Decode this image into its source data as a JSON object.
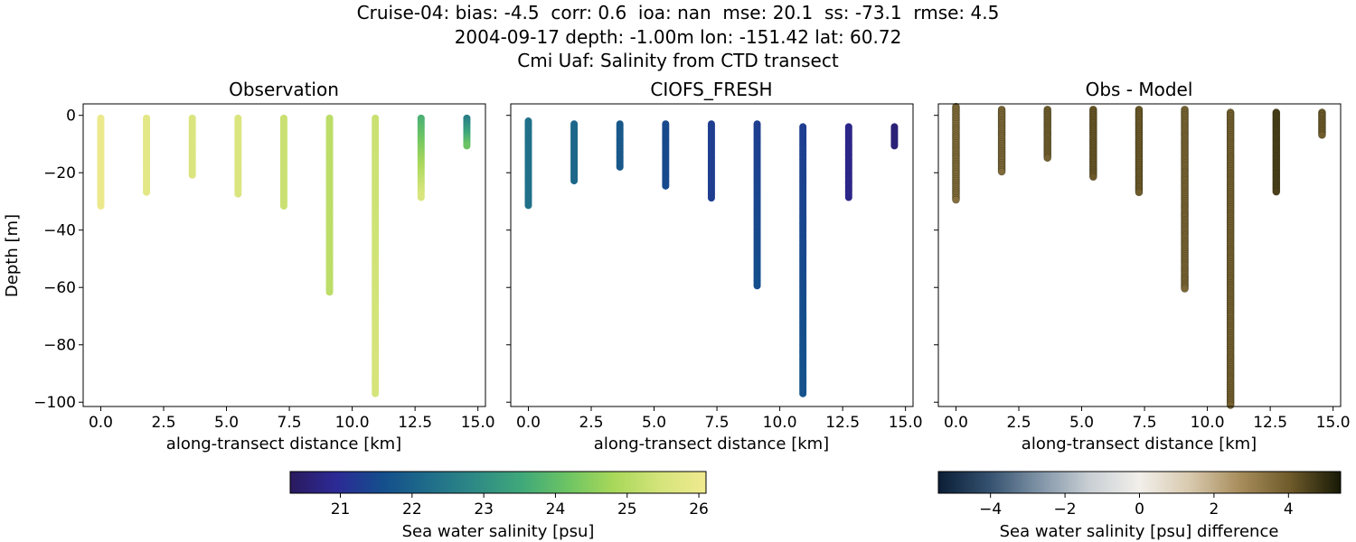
{
  "title_lines": [
    "Cruise-04: bias: -4.5  corr: 0.6  ioa: nan  mse: 20.1  ss: -73.1  rmse: 4.5",
    "2004-09-17 depth: -1.00m lon: -151.42 lat: 60.72",
    "Cmi Uaf: Salinity from CTD transect"
  ],
  "colors": {
    "salinity_cmap": [
      "#2a1a5e",
      "#2c2a96",
      "#144e8c",
      "#1f6d8a",
      "#2e8a85",
      "#3fa87a",
      "#6cc463",
      "#a8d85a",
      "#d4e47a",
      "#f1ea90"
    ],
    "difference_cmap": [
      "#0b1e36",
      "#33506e",
      "#7f93a6",
      "#c9cfd4",
      "#f2efeb",
      "#d8c9ae",
      "#a88d5c",
      "#6e5a2a",
      "#171a06"
    ]
  },
  "chart_data": [
    {
      "type": "scatter",
      "title": "Observation",
      "xlabel": "along-transect distance [km]",
      "ylabel": "Depth [m]",
      "xlim": [
        -0.7,
        15.3
      ],
      "ylim": [
        -101.5,
        4
      ],
      "xticks": [
        0.0,
        2.5,
        5.0,
        7.5,
        10.0,
        12.5,
        15.0
      ],
      "xtick_labels": [
        "0.0",
        "2.5",
        "5.0",
        "7.5",
        "10.0",
        "12.5",
        "15.0"
      ],
      "yticks": [
        0,
        -20,
        -40,
        -60,
        -80,
        -100
      ],
      "ytick_labels": [
        "0",
        "−20",
        "−40",
        "−60",
        "−80",
        "−100"
      ],
      "color_scale": "salinity",
      "profiles": [
        {
          "x": 0.0,
          "top": -1,
          "bottom": -32,
          "value_top": 26.0,
          "value_bottom": 26.0
        },
        {
          "x": 1.82,
          "top": -1,
          "bottom": -27,
          "value_top": 25.8,
          "value_bottom": 25.8
        },
        {
          "x": 3.64,
          "top": -1,
          "bottom": -21,
          "value_top": 25.6,
          "value_bottom": 25.6
        },
        {
          "x": 5.46,
          "top": -1,
          "bottom": -28,
          "value_top": 25.6,
          "value_bottom": 25.6
        },
        {
          "x": 7.28,
          "top": -1,
          "bottom": -32,
          "value_top": 25.3,
          "value_bottom": 25.3
        },
        {
          "x": 9.1,
          "top": -1,
          "bottom": -62,
          "value_top": 25.1,
          "value_bottom": 25.1
        },
        {
          "x": 10.92,
          "top": -1,
          "bottom": -97,
          "value_top": 25.3,
          "value_bottom": 25.5
        },
        {
          "x": 12.74,
          "top": -1,
          "bottom": -29,
          "value_top": 23.7,
          "value_bottom": 25.6
        },
        {
          "x": 14.56,
          "top": -1,
          "bottom": -11,
          "value_top": 22.6,
          "value_bottom": 24.2
        }
      ]
    },
    {
      "type": "scatter",
      "title": "CIOFS_FRESH",
      "xlabel": "along-transect distance [km]",
      "ylabel": "",
      "xlim": [
        -0.7,
        15.3
      ],
      "ylim": [
        -101.5,
        4
      ],
      "xticks": [
        0.0,
        2.5,
        5.0,
        7.5,
        10.0,
        12.5,
        15.0
      ],
      "xtick_labels": [
        "0.0",
        "2.5",
        "5.0",
        "7.5",
        "10.0",
        "12.5",
        "15.0"
      ],
      "yticks": [
        0,
        -20,
        -40,
        -60,
        -80,
        -100
      ],
      "ytick_labels": [],
      "color_scale": "salinity",
      "profiles": [
        {
          "x": 0.0,
          "top": -2,
          "bottom": -32,
          "value_top": 22.3,
          "value_bottom": 22.3
        },
        {
          "x": 1.82,
          "top": -3,
          "bottom": -23,
          "value_top": 22.1,
          "value_bottom": 22.1
        },
        {
          "x": 3.64,
          "top": -3,
          "bottom": -18,
          "value_top": 21.8,
          "value_bottom": 21.8
        },
        {
          "x": 5.46,
          "top": -3,
          "bottom": -25,
          "value_top": 21.5,
          "value_bottom": 21.5
        },
        {
          "x": 7.28,
          "top": -3,
          "bottom": -29,
          "value_top": 21.3,
          "value_bottom": 21.3
        },
        {
          "x": 9.1,
          "top": -3,
          "bottom": -60,
          "value_top": 21.3,
          "value_bottom": 21.6
        },
        {
          "x": 10.92,
          "top": -4,
          "bottom": -97,
          "value_top": 21.3,
          "value_bottom": 21.7
        },
        {
          "x": 12.74,
          "top": -4,
          "bottom": -29,
          "value_top": 20.8,
          "value_bottom": 20.8
        },
        {
          "x": 14.56,
          "top": -4,
          "bottom": -11,
          "value_top": 20.6,
          "value_bottom": 20.6
        }
      ]
    },
    {
      "type": "scatter",
      "title": "Obs - Model",
      "xlabel": "along-transect distance [km]",
      "ylabel": "",
      "xlim": [
        -0.7,
        15.3
      ],
      "ylim": [
        -101.5,
        4
      ],
      "xticks": [
        0.0,
        2.5,
        5.0,
        7.5,
        10.0,
        12.5,
        15.0
      ],
      "xtick_labels": [
        "0.0",
        "2.5",
        "5.0",
        "7.5",
        "10.0",
        "12.5",
        "15.0"
      ],
      "yticks": [
        0,
        -20,
        -40,
        -60,
        -80,
        -100
      ],
      "ytick_labels": [],
      "color_scale": "difference",
      "profiles": [
        {
          "x": 0.0,
          "top": 3,
          "bottom": -30,
          "value_top": 3.5,
          "value_bottom": 3.5
        },
        {
          "x": 1.82,
          "top": 2,
          "bottom": -20,
          "value_top": 3.6,
          "value_bottom": 3.6
        },
        {
          "x": 3.64,
          "top": 2,
          "bottom": -15,
          "value_top": 3.9,
          "value_bottom": 3.9
        },
        {
          "x": 5.46,
          "top": 2,
          "bottom": -22,
          "value_top": 4.1,
          "value_bottom": 4.1
        },
        {
          "x": 7.28,
          "top": 2,
          "bottom": -27,
          "value_top": 4.0,
          "value_bottom": 4.0
        },
        {
          "x": 9.1,
          "top": 2,
          "bottom": -61,
          "value_top": 3.7,
          "value_bottom": 3.7
        },
        {
          "x": 10.92,
          "top": 1,
          "bottom": -101.5,
          "value_top": 3.8,
          "value_bottom": 3.8
        },
        {
          "x": 12.74,
          "top": 1,
          "bottom": -27,
          "value_top": 4.6,
          "value_bottom": 4.6
        },
        {
          "x": 14.56,
          "top": 1,
          "bottom": -7,
          "value_top": 4.0,
          "value_bottom": 4.0
        }
      ]
    }
  ],
  "colorbars": [
    {
      "label": "Sea water salinity [psu]",
      "scale": "salinity",
      "range": [
        20.3,
        26.1
      ],
      "ticks": [
        21,
        22,
        23,
        24,
        25,
        26
      ],
      "tick_labels": [
        "21",
        "22",
        "23",
        "24",
        "25",
        "26"
      ]
    },
    {
      "label": "Sea water salinity [psu] difference",
      "scale": "difference",
      "range": [
        -5.4,
        5.4
      ],
      "ticks": [
        -4,
        -2,
        0,
        2,
        4
      ],
      "tick_labels": [
        "−4",
        "−2",
        "0",
        "2",
        "4"
      ]
    }
  ]
}
